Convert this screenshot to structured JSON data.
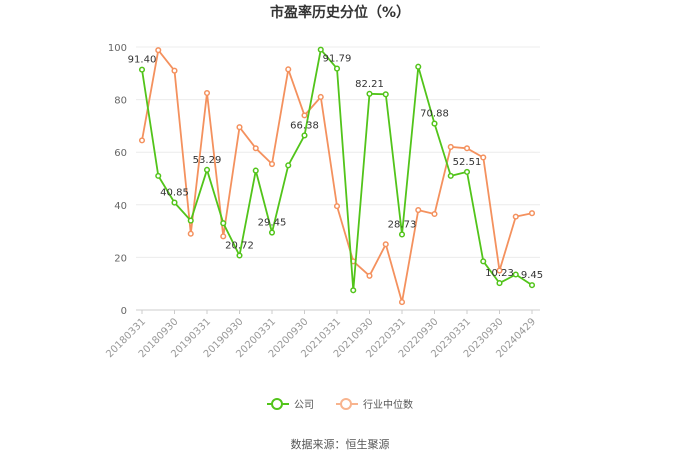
{
  "chart_data": {
    "type": "line",
    "title": "市盈率历史分位（%）",
    "ylim": [
      0,
      100
    ],
    "yticks": [
      "0",
      "20",
      "40",
      "60",
      "80",
      "100"
    ],
    "x_tick_labels": [
      "20180331",
      "20180930",
      "20190331",
      "20190930",
      "20200331",
      "20200930",
      "20210331",
      "20210930",
      "20220331",
      "20220930",
      "20230331",
      "20230930",
      "20240429"
    ],
    "grid": true,
    "legend_position": "bottom",
    "series": [
      {
        "name": "公司",
        "color": "#52c41a",
        "values": [
          91.4,
          51.0,
          40.85,
          34.0,
          53.29,
          33.0,
          20.72,
          53.0,
          29.45,
          55.0,
          66.38,
          99.0,
          91.79,
          7.5,
          82.21,
          82.0,
          28.73,
          92.5,
          70.88,
          51.0,
          52.51,
          18.5,
          10.23,
          13.5,
          9.45
        ],
        "labels": [
          "91.40",
          "",
          "40.85",
          "",
          "53.29",
          "",
          "20.72",
          "",
          "29.45",
          "",
          "66.38",
          "",
          "91.79",
          "",
          "82.21",
          "",
          "28.73",
          "",
          "70.88",
          "",
          "52.51",
          "",
          "10.23",
          "",
          "9.45"
        ]
      },
      {
        "name": "行业中位数",
        "color": "#f4915e",
        "values": [
          64.5,
          98.8,
          91.0,
          29.0,
          82.5,
          28.0,
          69.5,
          61.5,
          55.5,
          91.5,
          74.0,
          81.0,
          39.5,
          18.5,
          13.0,
          25.0,
          3.0,
          38.0,
          36.5,
          62.0,
          61.5,
          58.0,
          15.0,
          35.5,
          36.8
        ]
      }
    ]
  },
  "source": "数据来源：恒生聚源"
}
